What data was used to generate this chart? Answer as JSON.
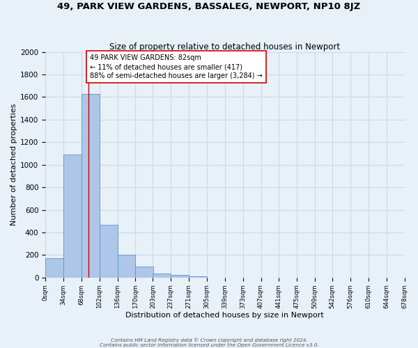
{
  "title": "49, PARK VIEW GARDENS, BASSALEG, NEWPORT, NP10 8JZ",
  "subtitle": "Size of property relative to detached houses in Newport",
  "xlabel": "Distribution of detached houses by size in Newport",
  "ylabel": "Number of detached properties",
  "bin_edges": [
    0,
    34,
    68,
    102,
    136,
    170,
    203,
    237,
    271,
    305,
    339,
    373,
    407,
    441,
    475,
    509,
    542,
    576,
    610,
    644,
    678
  ],
  "bar_heights": [
    170,
    1090,
    1630,
    470,
    200,
    100,
    35,
    20,
    10,
    0,
    0,
    0,
    0,
    0,
    0,
    0,
    0,
    0,
    0,
    0
  ],
  "tick_labels": [
    "0sqm",
    "34sqm",
    "68sqm",
    "102sqm",
    "136sqm",
    "170sqm",
    "203sqm",
    "237sqm",
    "271sqm",
    "305sqm",
    "339sqm",
    "373sqm",
    "407sqm",
    "441sqm",
    "475sqm",
    "509sqm",
    "542sqm",
    "576sqm",
    "610sqm",
    "644sqm",
    "678sqm"
  ],
  "bar_color": "#aec6e8",
  "bar_edge_color": "#5599cc",
  "vline_x": 82,
  "vline_color": "#cc0000",
  "annotation_text": "49 PARK VIEW GARDENS: 82sqm\n← 11% of detached houses are smaller (417)\n88% of semi-detached houses are larger (3,284) →",
  "annotation_box_color": "#ffffff",
  "annotation_box_edge": "#cc0000",
  "ylim": [
    0,
    2000
  ],
  "yticks": [
    0,
    200,
    400,
    600,
    800,
    1000,
    1200,
    1400,
    1600,
    1800,
    2000
  ],
  "grid_color": "#ccd9e8",
  "bg_color": "#e8f0f8",
  "footer1": "Contains HM Land Registry data © Crown copyright and database right 2024.",
  "footer2": "Contains public sector information licensed under the Open Government Licence v3.0."
}
